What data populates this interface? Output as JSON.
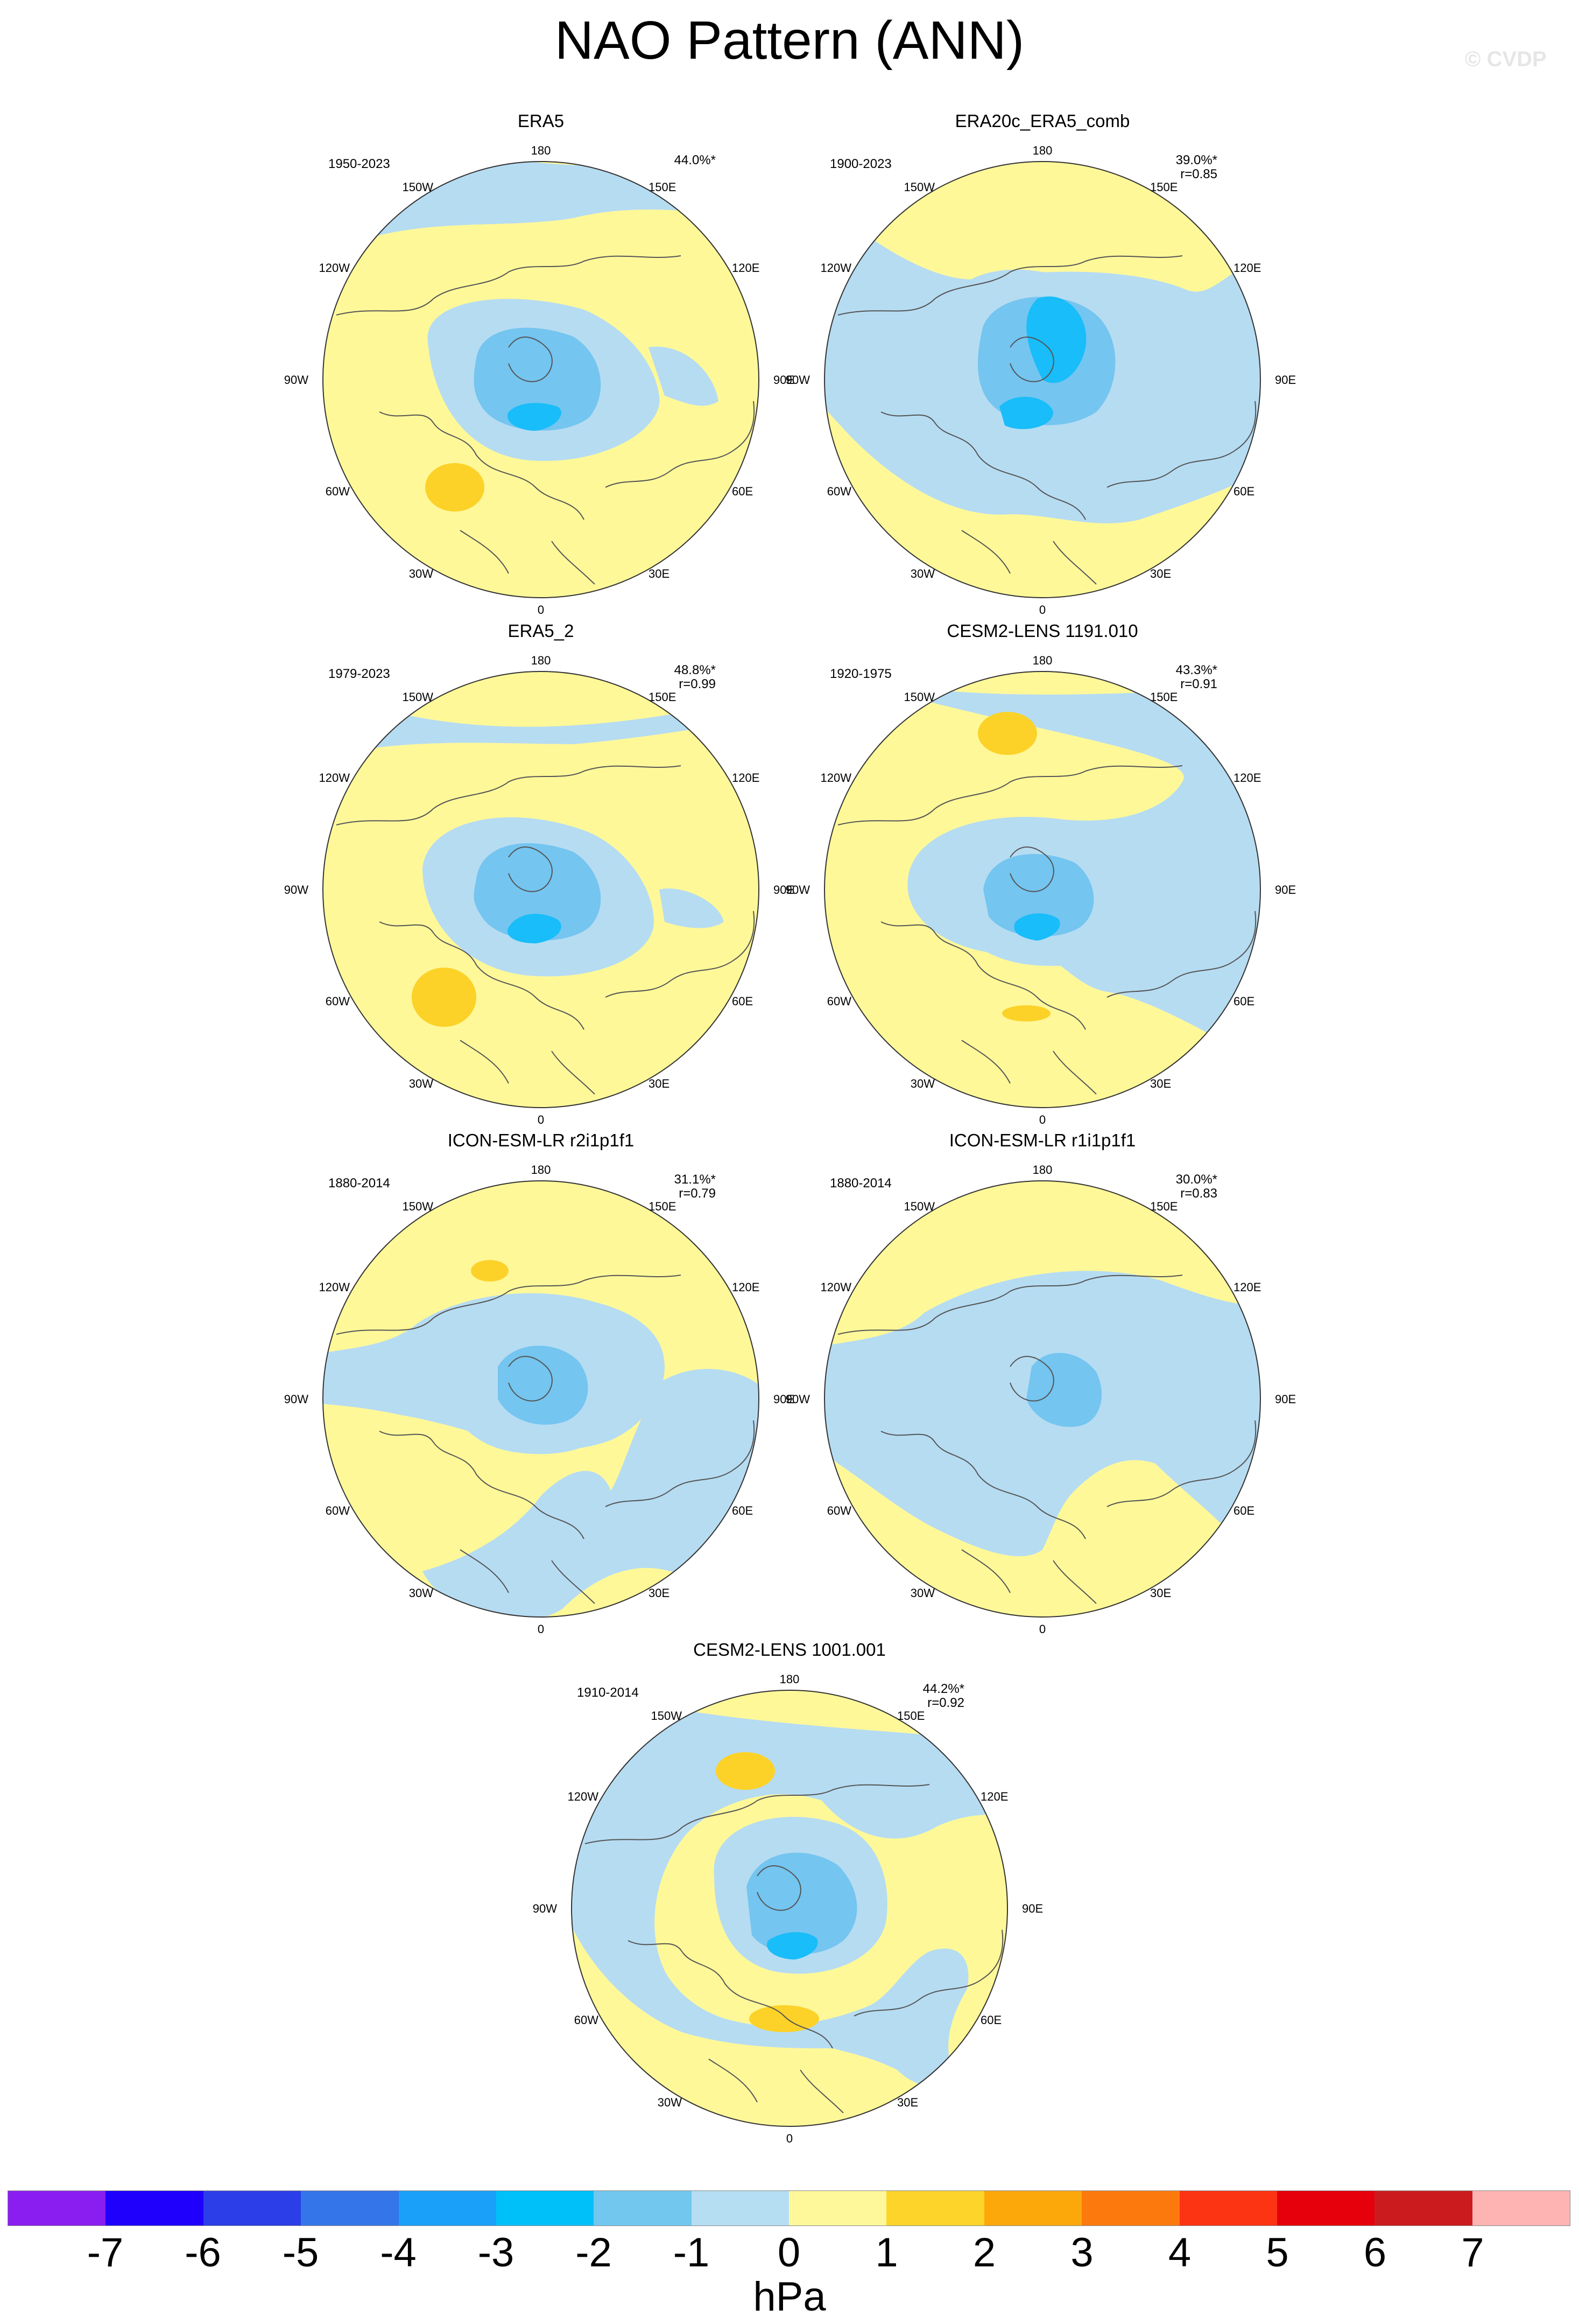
{
  "figure": {
    "title": "NAO Pattern (ANN)",
    "watermark": "© CVDP"
  },
  "panels": [
    {
      "title": "ERA5",
      "period": "1950-2023",
      "stats": [
        "44.0%*"
      ],
      "colors": {
        "bg": "#fff899",
        "neg1": "#b6dcf2",
        "neg2": "#74c5f0",
        "neg3": "#18bdf9",
        "pos1": "#fcd229"
      }
    },
    {
      "title": "ERA20c_ERA5_comb",
      "period": "1900-2023",
      "stats": [
        "39.0%*",
        "r=0.85"
      ]
    },
    {
      "title": "ERA5_2",
      "period": "1979-2023",
      "stats": [
        "48.8%*",
        "r=0.99"
      ]
    },
    {
      "title": "CESM2-LENS 1191.010",
      "period": "1920-1975",
      "stats": [
        "43.3%*",
        "r=0.91"
      ]
    },
    {
      "title": "ICON-ESM-LR r2i1p1f1",
      "period": "1880-2014",
      "stats": [
        "31.1%*",
        "r=0.79"
      ]
    },
    {
      "title": "ICON-ESM-LR r1i1p1f1",
      "period": "1880-2014",
      "stats": [
        "30.0%*",
        "r=0.83"
      ]
    },
    {
      "title": "CESM2-LENS 1001.001",
      "period": "1910-2014",
      "stats": [
        "44.2%*",
        "r=0.92"
      ]
    }
  ],
  "map_labels": {
    "top": "180",
    "bottom": "0",
    "left": "90W",
    "right": "90E",
    "ul1": "150W",
    "ul2": "120W",
    "ll1": "60W",
    "ll2": "30W",
    "ur1": "150E",
    "ur2": "120E",
    "lr1": "60E",
    "lr2": "30E"
  },
  "colorbar": {
    "unit": "hPa",
    "ticks": [
      "-7",
      "-6",
      "-5",
      "-4",
      "-3",
      "-2",
      "-1",
      "0",
      "1",
      "2",
      "3",
      "4",
      "5",
      "6",
      "7"
    ],
    "colors": [
      "#8a1ef0",
      "#1e00fc",
      "#2b3ee8",
      "#3575ea",
      "#1aa0f8",
      "#00c0f9",
      "#72c7ef",
      "#b5def3",
      "#fff89a",
      "#fdd42a",
      "#fca80a",
      "#fc7a0d",
      "#fc3414",
      "#e6000c",
      "#cc1b1f",
      "#ffb4b4"
    ]
  }
}
